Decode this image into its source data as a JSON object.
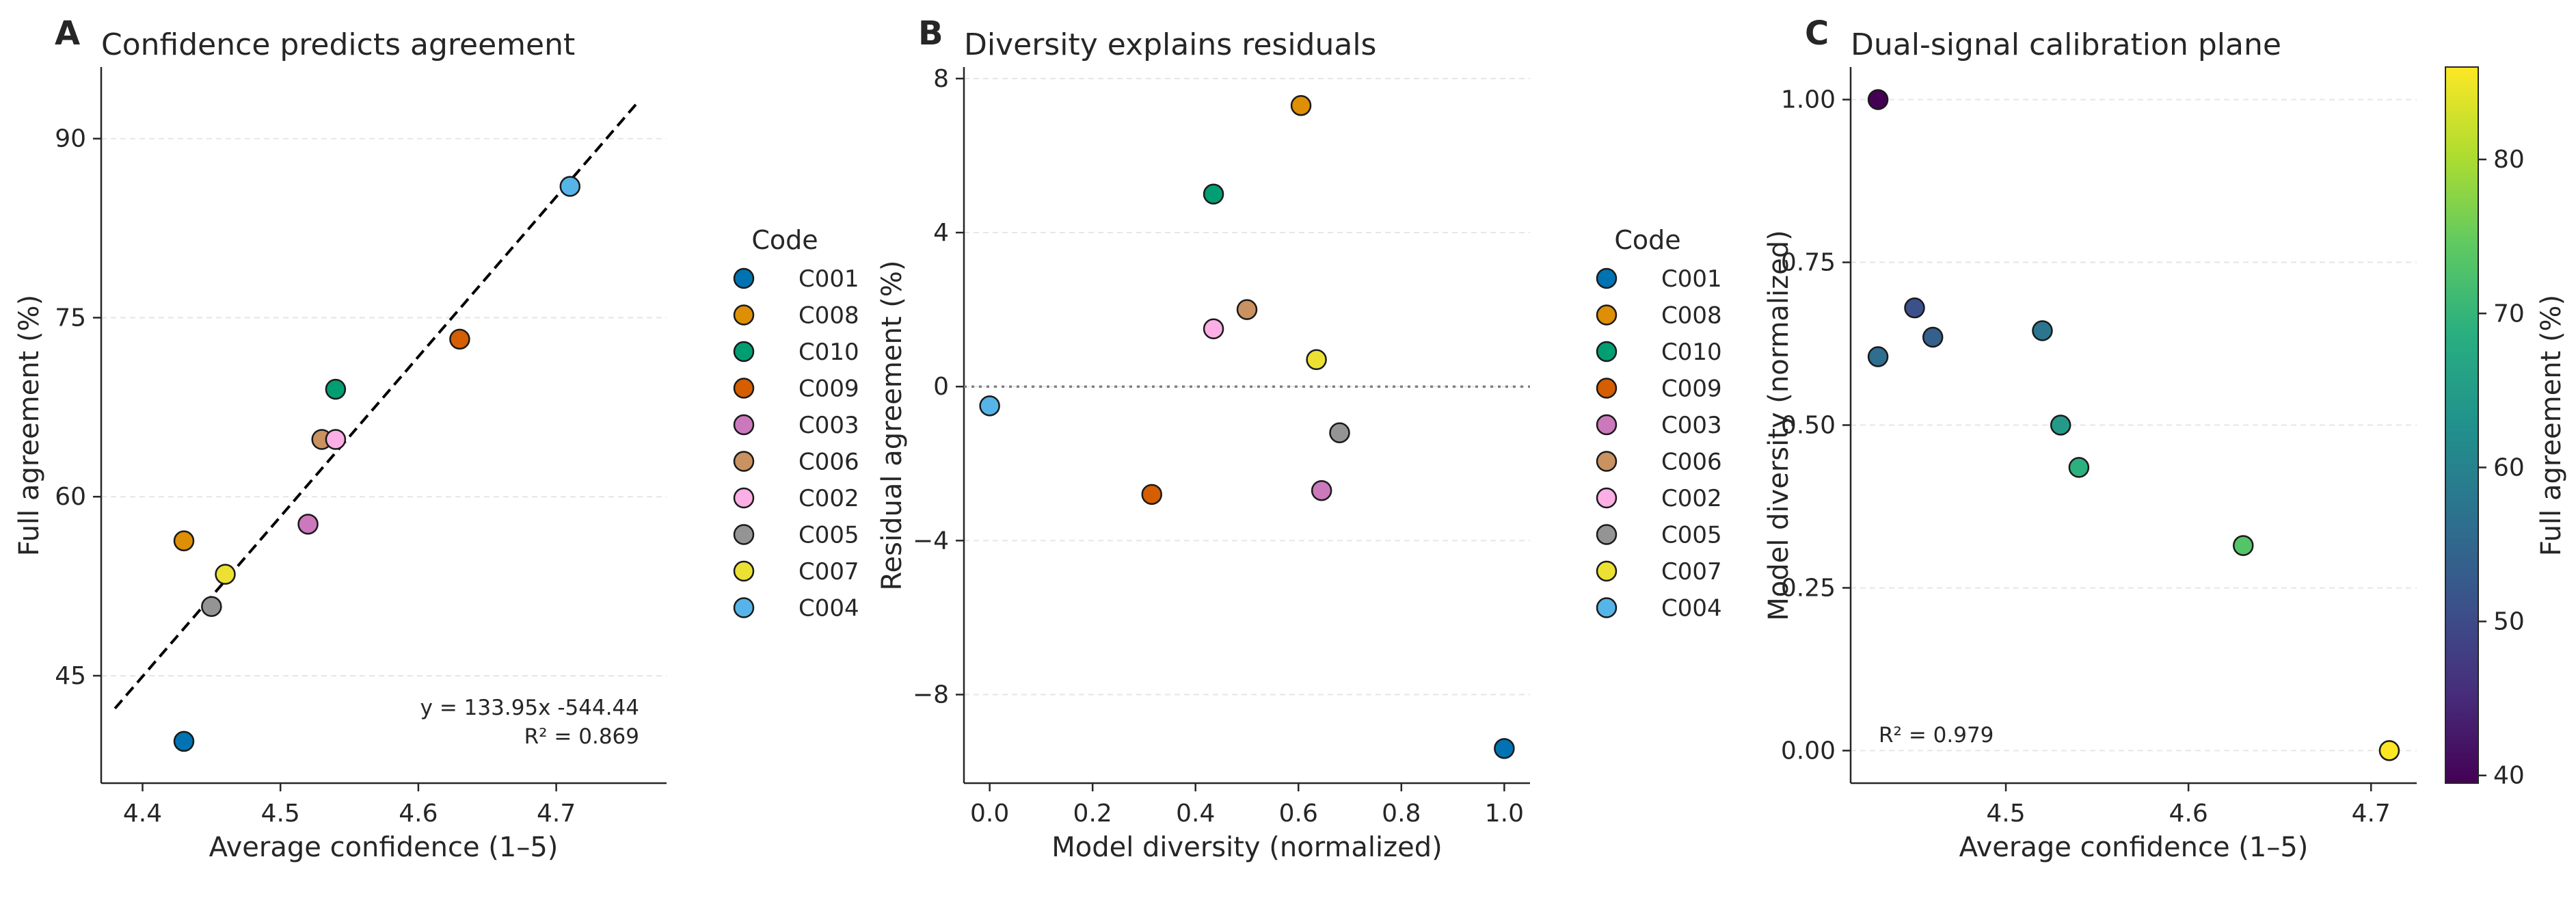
{
  "legend_title": "Code",
  "codes": [
    "C001",
    "C008",
    "C010",
    "C009",
    "C003",
    "C006",
    "C002",
    "C005",
    "C007",
    "C004"
  ],
  "code_colors": {
    "C001": "#0173b2",
    "C008": "#de8f05",
    "C010": "#029e73",
    "C009": "#d55e00",
    "C003": "#cc78bc",
    "C006": "#ca9161",
    "C002": "#fbafe4",
    "C005": "#949494",
    "C007": "#ece133",
    "C004": "#56b4e9"
  },
  "chart_data": [
    {
      "panel": "A",
      "type": "scatter",
      "title": "Confidence predicts agreement",
      "xlabel": "Average confidence (1–5)",
      "ylabel": "Full agreement (%)",
      "xlim": [
        4.37,
        4.78
      ],
      "ylim": [
        36,
        96
      ],
      "xticks": [
        4.4,
        4.5,
        4.6,
        4.7
      ],
      "xtick_labels": [
        "4.4",
        "4.5",
        "4.6",
        "4.7"
      ],
      "yticks": [
        45,
        60,
        75,
        90
      ],
      "ytick_labels": [
        "45",
        "60",
        "75",
        "90"
      ],
      "points": [
        {
          "code": "C001",
          "x": 4.43,
          "y": 39.5
        },
        {
          "code": "C008",
          "x": 4.43,
          "y": 56.3
        },
        {
          "code": "C010",
          "x": 4.54,
          "y": 69.0
        },
        {
          "code": "C009",
          "x": 4.63,
          "y": 73.2
        },
        {
          "code": "C003",
          "x": 4.52,
          "y": 57.7
        },
        {
          "code": "C006",
          "x": 4.53,
          "y": 64.8
        },
        {
          "code": "C002",
          "x": 4.54,
          "y": 64.8
        },
        {
          "code": "C005",
          "x": 4.45,
          "y": 50.8
        },
        {
          "code": "C007",
          "x": 4.46,
          "y": 53.5
        },
        {
          "code": "C004",
          "x": 4.71,
          "y": 86.0
        }
      ],
      "fit": {
        "slope": 133.95,
        "intercept": -544.44,
        "x0": 4.38,
        "x1": 4.76
      },
      "equation": "y = 133.95x -544.44",
      "r2": "R² = 0.869"
    },
    {
      "panel": "B",
      "type": "scatter",
      "title": "Diversity explains residuals",
      "xlabel": "Model diversity (normalized)",
      "ylabel": "Residual agreement (%)",
      "xlim": [
        -0.05,
        1.05
      ],
      "ylim": [
        -10.3,
        8.3
      ],
      "xticks": [
        0.0,
        0.2,
        0.4,
        0.6,
        0.8,
        1.0
      ],
      "xtick_labels": [
        "0.0",
        "0.2",
        "0.4",
        "0.6",
        "0.8",
        "1.0"
      ],
      "yticks": [
        -8,
        -4,
        0,
        4,
        8
      ],
      "ytick_labels": [
        "−8",
        "−4",
        "0",
        "4",
        "8"
      ],
      "zero_line": 0,
      "points": [
        {
          "code": "C001",
          "x": 1.0,
          "y": -9.4
        },
        {
          "code": "C008",
          "x": 0.605,
          "y": 7.3
        },
        {
          "code": "C010",
          "x": 0.435,
          "y": 5.0
        },
        {
          "code": "C009",
          "x": 0.315,
          "y": -2.8
        },
        {
          "code": "C003",
          "x": 0.645,
          "y": -2.7
        },
        {
          "code": "C006",
          "x": 0.5,
          "y": 2.0
        },
        {
          "code": "C002",
          "x": 0.435,
          "y": 1.5
        },
        {
          "code": "C005",
          "x": 0.68,
          "y": -1.2
        },
        {
          "code": "C007",
          "x": 0.635,
          "y": 0.7
        },
        {
          "code": "C004",
          "x": 0.0,
          "y": -0.5
        }
      ]
    },
    {
      "panel": "C",
      "type": "scatter",
      "title": "Dual-signal calibration plane",
      "xlabel": "Average confidence (1–5)",
      "ylabel": "Model diversity (normalized)",
      "xlim": [
        4.415,
        4.725
      ],
      "ylim": [
        -0.05,
        1.05
      ],
      "xticks": [
        4.5,
        4.6,
        4.7
      ],
      "xtick_labels": [
        "4.5",
        "4.6",
        "4.7"
      ],
      "yticks": [
        0.0,
        0.25,
        0.5,
        0.75,
        1.0
      ],
      "ytick_labels": [
        "0.00",
        "0.25",
        "0.50",
        "0.75",
        "1.00"
      ],
      "r2": "R² = 0.979",
      "points": [
        {
          "x": 4.43,
          "y": 1.0,
          "agreement": 39.5
        },
        {
          "x": 4.45,
          "y": 0.68,
          "agreement": 50.8
        },
        {
          "x": 4.46,
          "y": 0.635,
          "agreement": 53.5
        },
        {
          "x": 4.43,
          "y": 0.605,
          "agreement": 56.3
        },
        {
          "x": 4.52,
          "y": 0.645,
          "agreement": 57.7
        },
        {
          "x": 4.53,
          "y": 0.5,
          "agreement": 64.8
        },
        {
          "x": 4.54,
          "y": 0.435,
          "agreement": 69.0
        },
        {
          "x": 4.63,
          "y": 0.315,
          "agreement": 73.2
        },
        {
          "x": 4.71,
          "y": 0.0,
          "agreement": 86.0
        }
      ],
      "colorbar": {
        "label": "Full agreement (%)",
        "range": [
          39.5,
          86.0
        ],
        "ticks": [
          40,
          50,
          60,
          70,
          80
        ],
        "tick_labels": [
          "40",
          "50",
          "60",
          "70",
          "80"
        ],
        "colormap": "viridis"
      }
    }
  ]
}
